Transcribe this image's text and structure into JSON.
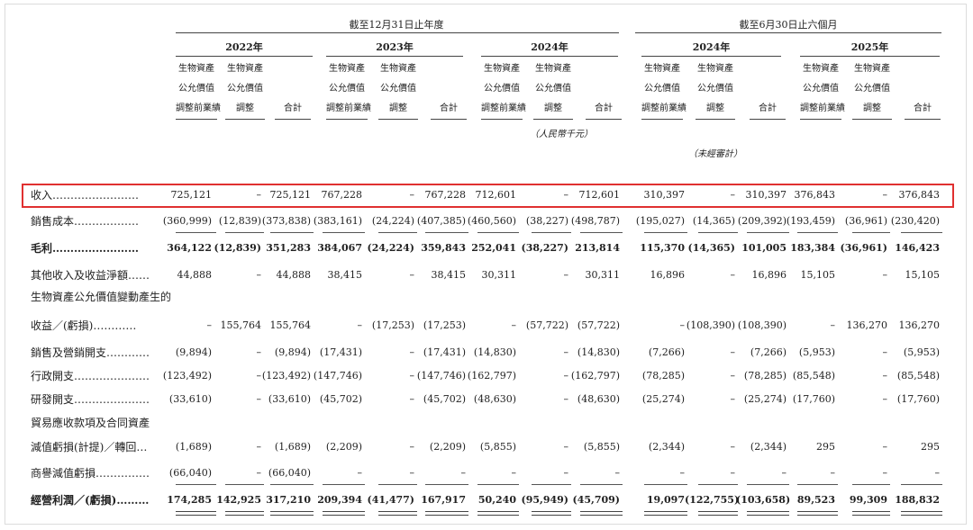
{
  "header": {
    "period_fy": "截至12月31日止年度",
    "period_h1": "截至6月30日止六個月",
    "years": [
      "2022年",
      "2023年",
      "2024年",
      "2024年",
      "2025年"
    ],
    "col_a": [
      "生物資產",
      "公允價值",
      "調整前業績"
    ],
    "col_b": [
      "生物資產",
      "公允價值",
      "調整"
    ],
    "col_c": "合計",
    "unit_note": "（人民幣千元）",
    "unaudited_note": "（未經審計）"
  },
  "rows": [
    {
      "label": "收入……………………",
      "values": [
        "725,121",
        "–",
        "725,121",
        "767,228",
        "–",
        "767,228",
        "712,601",
        "–",
        "712,601",
        "310,397",
        "–",
        "310,397",
        "376,843",
        "–",
        "376,843"
      ]
    },
    {
      "label": "銷售成本………………",
      "values": [
        "(360,999)",
        "(12,839)",
        "(373,838)",
        "(383,161)",
        "(24,224)",
        "(407,385)",
        "(460,560)",
        "(38,227)",
        "(498,787)",
        "(195,027)",
        "(14,365)",
        "(209,392)",
        "(193,459)",
        "(36,961)",
        "(230,420)"
      ]
    },
    {
      "label": "毛利……………………",
      "values": [
        "364,122",
        "(12,839)",
        "351,283",
        "384,067",
        "(24,224)",
        "359,843",
        "252,041",
        "(38,227)",
        "213,814",
        "115,370",
        "(14,365)",
        "101,005",
        "183,384",
        "(36,961)",
        "146,423"
      ]
    },
    {
      "label": "其他收入及收益淨額……",
      "values": [
        "44,888",
        "–",
        "44,888",
        "38,415",
        "–",
        "38,415",
        "30,311",
        "–",
        "30,311",
        "16,896",
        "–",
        "16,896",
        "15,105",
        "–",
        "15,105"
      ]
    },
    {
      "label": "生物資產公允價值變動產生的",
      "values": []
    },
    {
      "label": "收益／(虧損)…………",
      "values": [
        "–",
        "155,764",
        "155,764",
        "–",
        "(17,253)",
        "(17,253)",
        "–",
        "(57,722)",
        "(57,722)",
        "–",
        "(108,390)",
        "(108,390)",
        "–",
        "136,270",
        "136,270"
      ]
    },
    {
      "label": "銷售及營銷開支…………",
      "values": [
        "(9,894)",
        "–",
        "(9,894)",
        "(17,431)",
        "–",
        "(17,431)",
        "(14,830)",
        "–",
        "(14,830)",
        "(7,266)",
        "–",
        "(7,266)",
        "(5,953)",
        "–",
        "(5,953)"
      ]
    },
    {
      "label": "行政開支…………………",
      "values": [
        "(123,492)",
        "–",
        "(123,492)",
        "(147,746)",
        "–",
        "(147,746)",
        "(162,797)",
        "–",
        "(162,797)",
        "(78,285)",
        "–",
        "(78,285)",
        "(85,548)",
        "–",
        "(85,548)"
      ]
    },
    {
      "label": "研發開支…………………",
      "values": [
        "(33,610)",
        "–",
        "(33,610)",
        "(45,702)",
        "–",
        "(45,702)",
        "(48,630)",
        "–",
        "(48,630)",
        "(25,274)",
        "–",
        "(25,274)",
        "(17,760)",
        "–",
        "(17,760)"
      ]
    },
    {
      "label": "貿易應收款項及合同資產",
      "values": []
    },
    {
      "label": "減值虧損(計提)／轉回…",
      "values": [
        "(1,689)",
        "–",
        "(1,689)",
        "(2,209)",
        "–",
        "(2,209)",
        "(5,855)",
        "–",
        "(5,855)",
        "(2,344)",
        "–",
        "(2,344)",
        "295",
        "–",
        "295"
      ]
    },
    {
      "label": "商譽減值虧損……………",
      "values": [
        "(66,040)",
        "–",
        "(66,040)",
        "–",
        "–",
        "–",
        "–",
        "–",
        "–",
        "–",
        "–",
        "–",
        "–",
        "–",
        "–"
      ]
    },
    {
      "label": "經營利潤／(虧損)………",
      "values": [
        "174,285",
        "142,925",
        "317,210",
        "209,394",
        "(41,477)",
        "167,917",
        "50,240",
        "(95,949)",
        "(45,709)",
        "19,097",
        "(122,755)",
        "(103,658)",
        "89,523",
        "99,309",
        "188,832"
      ]
    }
  ]
}
